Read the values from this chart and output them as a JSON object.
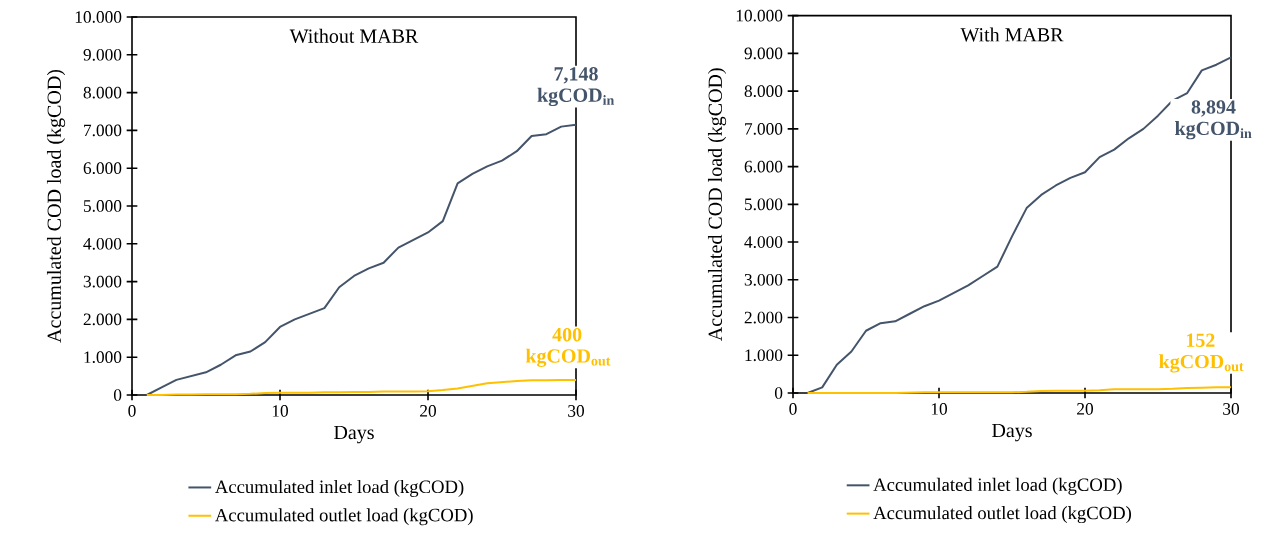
{
  "chart_data": [
    {
      "type": "line",
      "title": "Without MABR",
      "xlabel": "Days",
      "ylabel": "Accumulated COD load (kgCOD)",
      "x": [
        1,
        2,
        3,
        4,
        5,
        6,
        7,
        8,
        9,
        10,
        11,
        12,
        13,
        14,
        15,
        16,
        17,
        18,
        19,
        20,
        21,
        22,
        23,
        24,
        25,
        26,
        27,
        28,
        29,
        30
      ],
      "series": [
        {
          "name": "Accumulated inlet load (kgCOD)",
          "color": "#44546a",
          "values": [
            0,
            200,
            400,
            500,
            600,
            800,
            1050,
            1150,
            1400,
            1800,
            2000,
            2150,
            2300,
            2850,
            3150,
            3350,
            3500,
            3900,
            4100,
            4300,
            4600,
            5600,
            5850,
            6050,
            6200,
            6450,
            6850,
            6900,
            7100,
            7148
          ]
        },
        {
          "name": "Accumulated outlet load (kgCOD)",
          "color": "#ffc000",
          "values": [
            0,
            0,
            10,
            10,
            20,
            20,
            20,
            30,
            50,
            60,
            60,
            60,
            70,
            70,
            80,
            80,
            90,
            90,
            90,
            100,
            130,
            170,
            240,
            310,
            340,
            370,
            390,
            390,
            400,
            400
          ]
        }
      ],
      "annotations": [
        "7,148 kgCOD$_{in}$",
        "400 kgCOD$_{out}$"
      ],
      "xlim": [
        0,
        30
      ],
      "xticks": [
        0,
        10,
        20,
        30
      ],
      "ylim": [
        0,
        10000
      ],
      "yticks": [
        0,
        {
          "value": 1000,
          "label": "1.000"
        },
        {
          "value": 2000,
          "label": "2.000"
        },
        {
          "value": 3000,
          "label": "3.000"
        },
        {
          "value": 4000,
          "label": "4.000"
        },
        {
          "value": 5000,
          "label": "5.000"
        },
        {
          "value": 6000,
          "label": "6.000"
        },
        {
          "value": 7000,
          "label": "7.000"
        },
        {
          "value": 8000,
          "label": "8.000"
        },
        {
          "value": 9000,
          "label": "9.000"
        },
        {
          "value": 10000,
          "label": "10.000"
        }
      ],
      "legend": "bottom",
      "marker": "none",
      "line_style": "solid"
    },
    {
      "type": "line",
      "title": "With MABR",
      "xlabel": "Days",
      "ylabel": "Accumulated COD load (kgCOD)",
      "x": [
        1,
        2,
        3,
        4,
        5,
        6,
        7,
        8,
        9,
        10,
        11,
        12,
        13,
        14,
        15,
        16,
        17,
        18,
        19,
        20,
        21,
        22,
        23,
        24,
        25,
        26,
        27,
        28,
        29,
        30
      ],
      "series": [
        {
          "name": "Accumulated inlet load (kgCOD)",
          "color": "#44546a",
          "values": [
            0,
            150,
            750,
            1100,
            1650,
            1850,
            1900,
            2100,
            2300,
            2450,
            2650,
            2850,
            3100,
            3350,
            4150,
            4900,
            5250,
            5500,
            5700,
            5850,
            6250,
            6450,
            6750,
            7000,
            7350,
            7750,
            7950,
            8550,
            8700,
            8894
          ]
        },
        {
          "name": "Accumulated outlet load (kgCOD)",
          "color": "#ffc000",
          "values": [
            0,
            0,
            0,
            0,
            0,
            0,
            0,
            10,
            20,
            20,
            20,
            20,
            20,
            20,
            20,
            30,
            50,
            60,
            60,
            60,
            70,
            100,
            100,
            100,
            100,
            110,
            130,
            140,
            150,
            152
          ]
        }
      ],
      "annotations": [
        "8,894 kgCOD$_{in}$",
        "152 kgCOD$_{out}$"
      ],
      "xlim": [
        0,
        30
      ],
      "xticks": [
        0,
        10,
        20,
        30
      ],
      "ylim": [
        0,
        10000
      ],
      "yticks": [
        0,
        {
          "value": 1000,
          "label": "1.000"
        },
        {
          "value": 2000,
          "label": "2.000"
        },
        {
          "value": 3000,
          "label": "3.000"
        },
        {
          "value": 4000,
          "label": "4.000"
        },
        {
          "value": 5000,
          "label": "5.000"
        },
        {
          "value": 6000,
          "label": "6.000"
        },
        {
          "value": 7000,
          "label": "7.000"
        },
        {
          "value": 8000,
          "label": "8.000"
        },
        {
          "value": 9000,
          "label": "9.000"
        },
        {
          "value": 10000,
          "label": "10.000"
        }
      ],
      "legend": "bottom",
      "marker": "none",
      "line_style": "solid"
    }
  ]
}
